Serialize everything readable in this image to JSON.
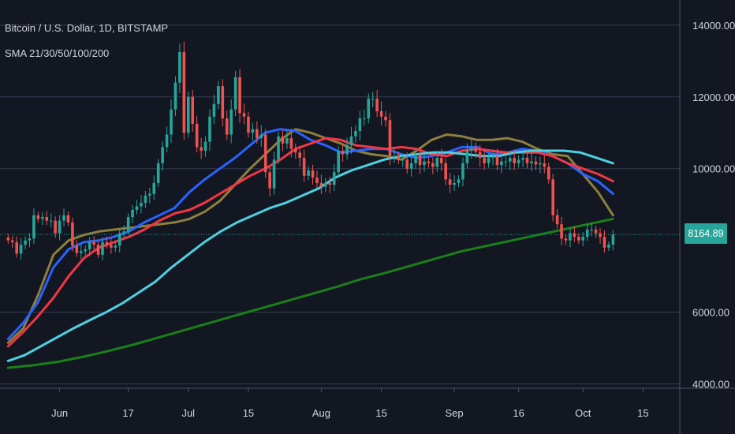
{
  "header": {
    "title": "Bitcoin / U.S. Dollar, 1D, BITSTAMP",
    "indicator": "SMA 21/30/50/100/200"
  },
  "last_price_label": "8164.89",
  "colors": {
    "background": "#131722",
    "grid": "#363c4e",
    "text": "#d1d4dc",
    "up": "#26a69a",
    "down": "#ef5350",
    "last_price_line": "#26a69a"
  },
  "chart_data": {
    "type": "candlestick",
    "title": "Bitcoin / U.S. Dollar, 1D, BITSTAMP",
    "ylim": [
      3880,
      14700
    ],
    "y_ticks": [
      {
        "value": 4000,
        "label": "4000.00"
      },
      {
        "value": 6000,
        "label": "6000.00"
      },
      {
        "value": 10000,
        "label": "10000.00"
      },
      {
        "value": 12000,
        "label": "12000.00"
      },
      {
        "value": 14000,
        "label": "14000.00"
      }
    ],
    "x_ticks": [
      {
        "date": "2019-06-01",
        "label": "Jun"
      },
      {
        "date": "2019-06-17",
        "label": "17"
      },
      {
        "date": "2019-07-01",
        "label": "Jul"
      },
      {
        "date": "2019-07-15",
        "label": "15"
      },
      {
        "date": "2019-08-01",
        "label": "Aug"
      },
      {
        "date": "2019-08-15",
        "label": "15"
      },
      {
        "date": "2019-09-01",
        "label": "Sep"
      },
      {
        "date": "2019-09-16",
        "label": "16"
      },
      {
        "date": "2019-10-01",
        "label": "Oct"
      },
      {
        "date": "2019-10-15",
        "label": "15"
      }
    ],
    "last_price": 8164.89,
    "candles": {
      "start_date": "2019-05-20",
      "close": [
        8000,
        7950,
        7630,
        7880,
        8000,
        8050,
        8700,
        8600,
        8650,
        8550,
        8550,
        8200,
        8550,
        8700,
        8500,
        7850,
        7650,
        7700,
        7750,
        7950,
        7880,
        7600,
        7950,
        7880,
        7800,
        7850,
        8200,
        8250,
        8650,
        8850,
        8950,
        9050,
        9250,
        9300,
        9600,
        10150,
        10600,
        10950,
        11650,
        12400,
        13250,
        11000,
        12000,
        11250,
        10600,
        10500,
        10750,
        11450,
        11800,
        12300,
        11400,
        10950,
        11650,
        12550,
        11550,
        11450,
        11000,
        11100,
        10850,
        10950,
        9900,
        9450,
        10250,
        10900,
        10700,
        10850,
        10550,
        10450,
        10300,
        9800,
        9950,
        9750,
        9600,
        9500,
        9600,
        9550,
        9900,
        10500,
        10400,
        10650,
        10900,
        11050,
        11400,
        11400,
        11950,
        11950,
        11600,
        11450,
        11350,
        10350,
        10350,
        10250,
        10250,
        10000,
        10150,
        10400,
        10100,
        10200,
        10150,
        10050,
        10300,
        10150,
        9700,
        9550,
        9600,
        9700,
        10150,
        10500,
        10580,
        10470,
        10300,
        10150,
        10300,
        10350,
        10100,
        10200,
        10200,
        10300,
        10150,
        10250,
        10300,
        10150,
        10200,
        10120,
        10150,
        10050,
        9700,
        8700,
        8450,
        8050,
        8000,
        8200,
        8100,
        8000,
        8100,
        8300,
        8300,
        8200,
        8100,
        7800,
        7880,
        8164.89
      ]
    },
    "series": [
      {
        "name": "SMA 21",
        "color": "#8d7f3c",
        "y": [
          5150,
          5550,
          6500,
          7600,
          8000,
          8150,
          8250,
          8300,
          8350,
          8400,
          8450,
          8500,
          8600,
          8800,
          9100,
          9550,
          10000,
          10400,
          10800,
          11100,
          11000,
          10850,
          10700,
          10500,
          10400,
          10350,
          10250,
          10500,
          10800,
          10950,
          10900,
          10800,
          10800,
          10850,
          10750,
          10550,
          10400,
          10350,
          9850,
          9350,
          8700
        ]
      },
      {
        "name": "SMA 30",
        "color": "#2962ff",
        "y": [
          5250,
          5700,
          6300,
          7250,
          7750,
          7950,
          8000,
          8100,
          8250,
          8500,
          8700,
          8900,
          9350,
          9700,
          10000,
          10300,
          10650,
          11000,
          11100,
          11050,
          10800,
          10650,
          10450,
          10500,
          10550,
          10550,
          10400,
          10300,
          10350,
          10450,
          10600,
          10600,
          10400,
          10450,
          10550,
          10500,
          10350,
          10150,
          9850,
          9650,
          9300
        ]
      },
      {
        "name": "SMA 50",
        "color": "#f23645",
        "y": [
          5050,
          5450,
          5900,
          6400,
          7000,
          7500,
          7800,
          7950,
          8100,
          8300,
          8550,
          8750,
          8850,
          9050,
          9300,
          9550,
          9800,
          10000,
          10250,
          10550,
          10700,
          10850,
          10800,
          10650,
          10600,
          10550,
          10600,
          10550,
          10400,
          10350,
          10500,
          10550,
          10500,
          10450,
          10450,
          10450,
          10350,
          10150,
          10000,
          9850,
          9650
        ]
      },
      {
        "name": "SMA 100",
        "color": "#4dd0e1",
        "y": [
          4640,
          4800,
          5050,
          5300,
          5550,
          5780,
          6000,
          6250,
          6550,
          6850,
          7250,
          7600,
          7950,
          8250,
          8500,
          8700,
          8900,
          9050,
          9250,
          9450,
          9750,
          9950,
          10100,
          10250,
          10350,
          10400,
          10450,
          10450,
          10400,
          10350,
          10350,
          10450,
          10500,
          10500,
          10500,
          10450,
          10300,
          10150
        ]
      },
      {
        "name": "SMA 200",
        "color": "#1a7f1a",
        "y": [
          4450,
          4520,
          4620,
          4760,
          4920,
          5100,
          5300,
          5500,
          5700,
          5900,
          6100,
          6300,
          6500,
          6700,
          6920,
          7100,
          7300,
          7500,
          7700,
          7850,
          8000,
          8150,
          8300,
          8450,
          8600
        ]
      }
    ]
  }
}
